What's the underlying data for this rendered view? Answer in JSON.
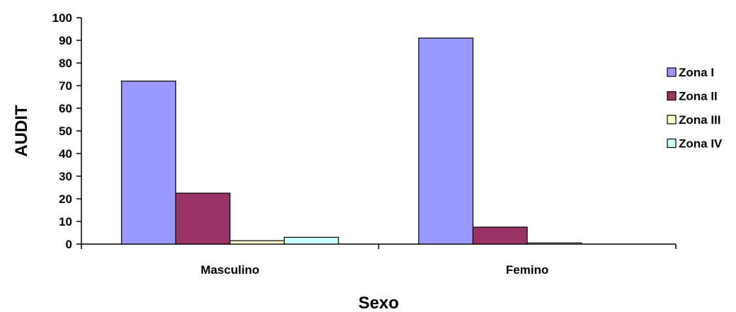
{
  "chart_data": {
    "type": "bar",
    "title": "",
    "xlabel": "Sexo",
    "ylabel": "AUDIT",
    "categories": [
      "Masculino",
      "Femino"
    ],
    "ylim": [
      0,
      100
    ],
    "yticks": [
      0,
      10,
      20,
      30,
      40,
      50,
      60,
      70,
      80,
      90,
      100
    ],
    "grid": false,
    "legend_position": "right",
    "series": [
      {
        "name": "Zona I",
        "values": [
          72,
          91
        ],
        "color": "#9999ff"
      },
      {
        "name": "Zona II",
        "values": [
          22.5,
          7.5
        ],
        "color": "#993366"
      },
      {
        "name": "Zona III",
        "values": [
          1.5,
          0.5
        ],
        "color": "#ffffcc"
      },
      {
        "name": "Zona IV",
        "values": [
          3,
          0
        ],
        "color": "#ccffff"
      }
    ]
  }
}
